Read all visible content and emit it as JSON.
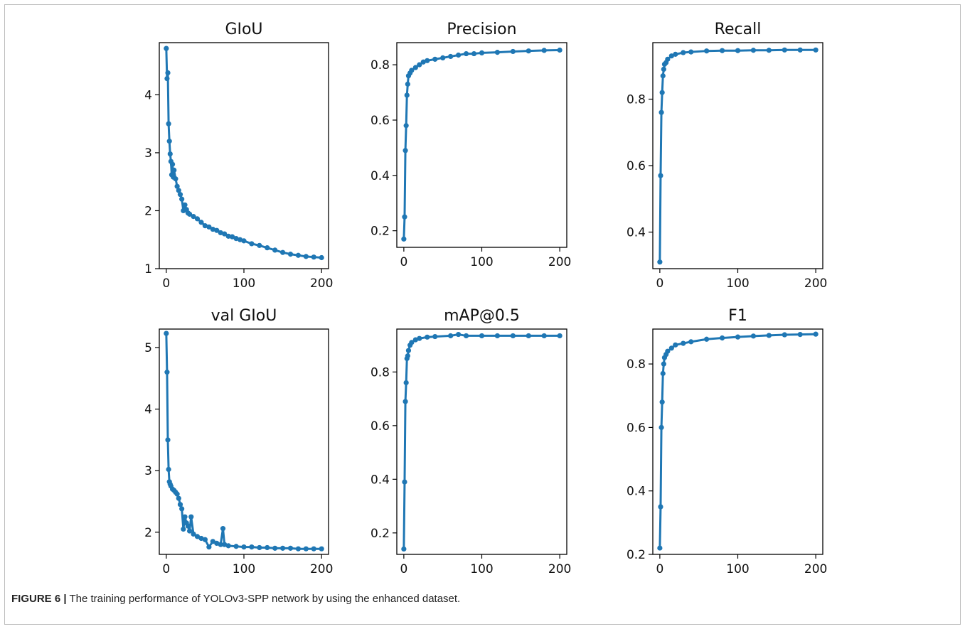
{
  "figure": {
    "caption_label": "FIGURE 6 |",
    "caption_text": "The training performance of YOLOv3-SPP network by using the enhanced dataset.",
    "colors": {
      "line": "#1f77b4",
      "axes": "#000000"
    }
  },
  "chart_data": [
    {
      "type": "line",
      "title": "GIoU",
      "xlim": [
        -9,
        209
      ],
      "ylim": [
        1.0,
        4.9
      ],
      "xticks": [
        0,
        100,
        200
      ],
      "yticks": [
        1,
        2,
        3,
        4
      ],
      "ytick_labels": [
        "1",
        "2",
        "3",
        "4"
      ],
      "series": [
        {
          "x": [
            0,
            1,
            2,
            3,
            4,
            5,
            6,
            7,
            8,
            9,
            10,
            12,
            14,
            16,
            18,
            20,
            22,
            24,
            26,
            28,
            30,
            35,
            40,
            45,
            50,
            55,
            60,
            65,
            70,
            75,
            80,
            85,
            90,
            95,
            100,
            110,
            120,
            130,
            140,
            150,
            160,
            170,
            180,
            190,
            200
          ],
          "y": [
            4.8,
            4.28,
            4.38,
            3.5,
            3.2,
            2.98,
            2.85,
            2.62,
            2.8,
            2.58,
            2.7,
            2.55,
            2.42,
            2.35,
            2.28,
            2.2,
            2.0,
            2.1,
            2.02,
            1.96,
            1.94,
            1.9,
            1.86,
            1.8,
            1.74,
            1.72,
            1.68,
            1.66,
            1.62,
            1.6,
            1.56,
            1.55,
            1.52,
            1.5,
            1.48,
            1.43,
            1.4,
            1.36,
            1.32,
            1.28,
            1.25,
            1.23,
            1.21,
            1.2,
            1.19
          ]
        }
      ]
    },
    {
      "type": "line",
      "title": "Precision",
      "xlim": [
        -9,
        209
      ],
      "ylim": [
        0.14,
        0.88
      ],
      "xticks": [
        0,
        100,
        200
      ],
      "yticks": [
        0.2,
        0.4,
        0.6,
        0.8
      ],
      "ytick_labels": [
        "0.2",
        "0.4",
        "0.6",
        "0.8"
      ],
      "series": [
        {
          "x": [
            0,
            1,
            2,
            3,
            4,
            5,
            6,
            8,
            10,
            15,
            20,
            25,
            30,
            40,
            50,
            60,
            70,
            80,
            90,
            100,
            120,
            140,
            160,
            180,
            200
          ],
          "y": [
            0.17,
            0.25,
            0.49,
            0.58,
            0.69,
            0.73,
            0.76,
            0.77,
            0.78,
            0.79,
            0.8,
            0.81,
            0.815,
            0.82,
            0.825,
            0.83,
            0.835,
            0.84,
            0.84,
            0.843,
            0.845,
            0.848,
            0.85,
            0.852,
            0.853
          ]
        }
      ]
    },
    {
      "type": "line",
      "title": "Recall",
      "xlim": [
        -9,
        209
      ],
      "ylim": [
        0.29,
        0.97
      ],
      "xticks": [
        0,
        100,
        200
      ],
      "yticks": [
        0.4,
        0.6,
        0.8
      ],
      "ytick_labels": [
        "0.4",
        "0.6",
        "0.8"
      ],
      "series": [
        {
          "x": [
            0,
            1,
            2,
            3,
            4,
            5,
            6,
            8,
            10,
            15,
            20,
            30,
            40,
            60,
            80,
            100,
            120,
            140,
            160,
            180,
            200
          ],
          "y": [
            0.31,
            0.57,
            0.76,
            0.82,
            0.87,
            0.89,
            0.905,
            0.91,
            0.92,
            0.93,
            0.935,
            0.94,
            0.942,
            0.945,
            0.946,
            0.946,
            0.947,
            0.947,
            0.948,
            0.948,
            0.948
          ]
        }
      ]
    },
    {
      "type": "line",
      "title": "val GIoU",
      "xlim": [
        -9,
        209
      ],
      "ylim": [
        1.64,
        5.3
      ],
      "xticks": [
        0,
        100,
        200
      ],
      "yticks": [
        2,
        3,
        4,
        5
      ],
      "ytick_labels": [
        "2",
        "3",
        "4",
        "5"
      ],
      "series": [
        {
          "x": [
            0,
            1,
            2,
            3,
            4,
            5,
            6,
            8,
            10,
            12,
            14,
            16,
            18,
            20,
            22,
            24,
            26,
            28,
            30,
            32,
            35,
            40,
            45,
            50,
            55,
            60,
            65,
            70,
            73,
            75,
            80,
            90,
            100,
            110,
            120,
            130,
            140,
            150,
            160,
            170,
            180,
            190,
            200
          ],
          "y": [
            5.23,
            4.6,
            3.5,
            3.02,
            2.82,
            2.78,
            2.75,
            2.7,
            2.68,
            2.65,
            2.62,
            2.55,
            2.45,
            2.38,
            2.05,
            2.25,
            2.15,
            2.1,
            2.02,
            2.25,
            1.97,
            1.93,
            1.9,
            1.88,
            1.76,
            1.85,
            1.82,
            1.8,
            2.06,
            1.8,
            1.78,
            1.77,
            1.76,
            1.76,
            1.75,
            1.75,
            1.74,
            1.74,
            1.74,
            1.73,
            1.73,
            1.73,
            1.73
          ]
        }
      ]
    },
    {
      "type": "line",
      "title": "mAP@0.5",
      "xlim": [
        -9,
        209
      ],
      "ylim": [
        0.12,
        0.96
      ],
      "xticks": [
        0,
        100,
        200
      ],
      "yticks": [
        0.2,
        0.4,
        0.6,
        0.8
      ],
      "ytick_labels": [
        "0.2",
        "0.4",
        "0.6",
        "0.8"
      ],
      "series": [
        {
          "x": [
            0,
            1,
            2,
            3,
            4,
            5,
            6,
            8,
            10,
            15,
            20,
            30,
            40,
            60,
            70,
            80,
            100,
            120,
            140,
            160,
            180,
            200
          ],
          "y": [
            0.14,
            0.39,
            0.69,
            0.76,
            0.85,
            0.86,
            0.88,
            0.9,
            0.91,
            0.92,
            0.925,
            0.93,
            0.932,
            0.935,
            0.94,
            0.935,
            0.935,
            0.935,
            0.935,
            0.935,
            0.935,
            0.935
          ]
        }
      ]
    },
    {
      "type": "line",
      "title": "F1",
      "xlim": [
        -9,
        209
      ],
      "ylim": [
        0.2,
        0.91
      ],
      "xticks": [
        0,
        100,
        200
      ],
      "yticks": [
        0.2,
        0.4,
        0.6,
        0.8
      ],
      "ytick_labels": [
        "0.2",
        "0.4",
        "0.6",
        "0.8"
      ],
      "series": [
        {
          "x": [
            0,
            1,
            2,
            3,
            4,
            5,
            6,
            8,
            10,
            15,
            20,
            30,
            40,
            60,
            80,
            100,
            120,
            140,
            160,
            180,
            200
          ],
          "y": [
            0.22,
            0.35,
            0.6,
            0.68,
            0.77,
            0.8,
            0.82,
            0.83,
            0.84,
            0.85,
            0.86,
            0.865,
            0.87,
            0.878,
            0.882,
            0.885,
            0.888,
            0.89,
            0.892,
            0.893,
            0.894
          ]
        }
      ]
    }
  ]
}
